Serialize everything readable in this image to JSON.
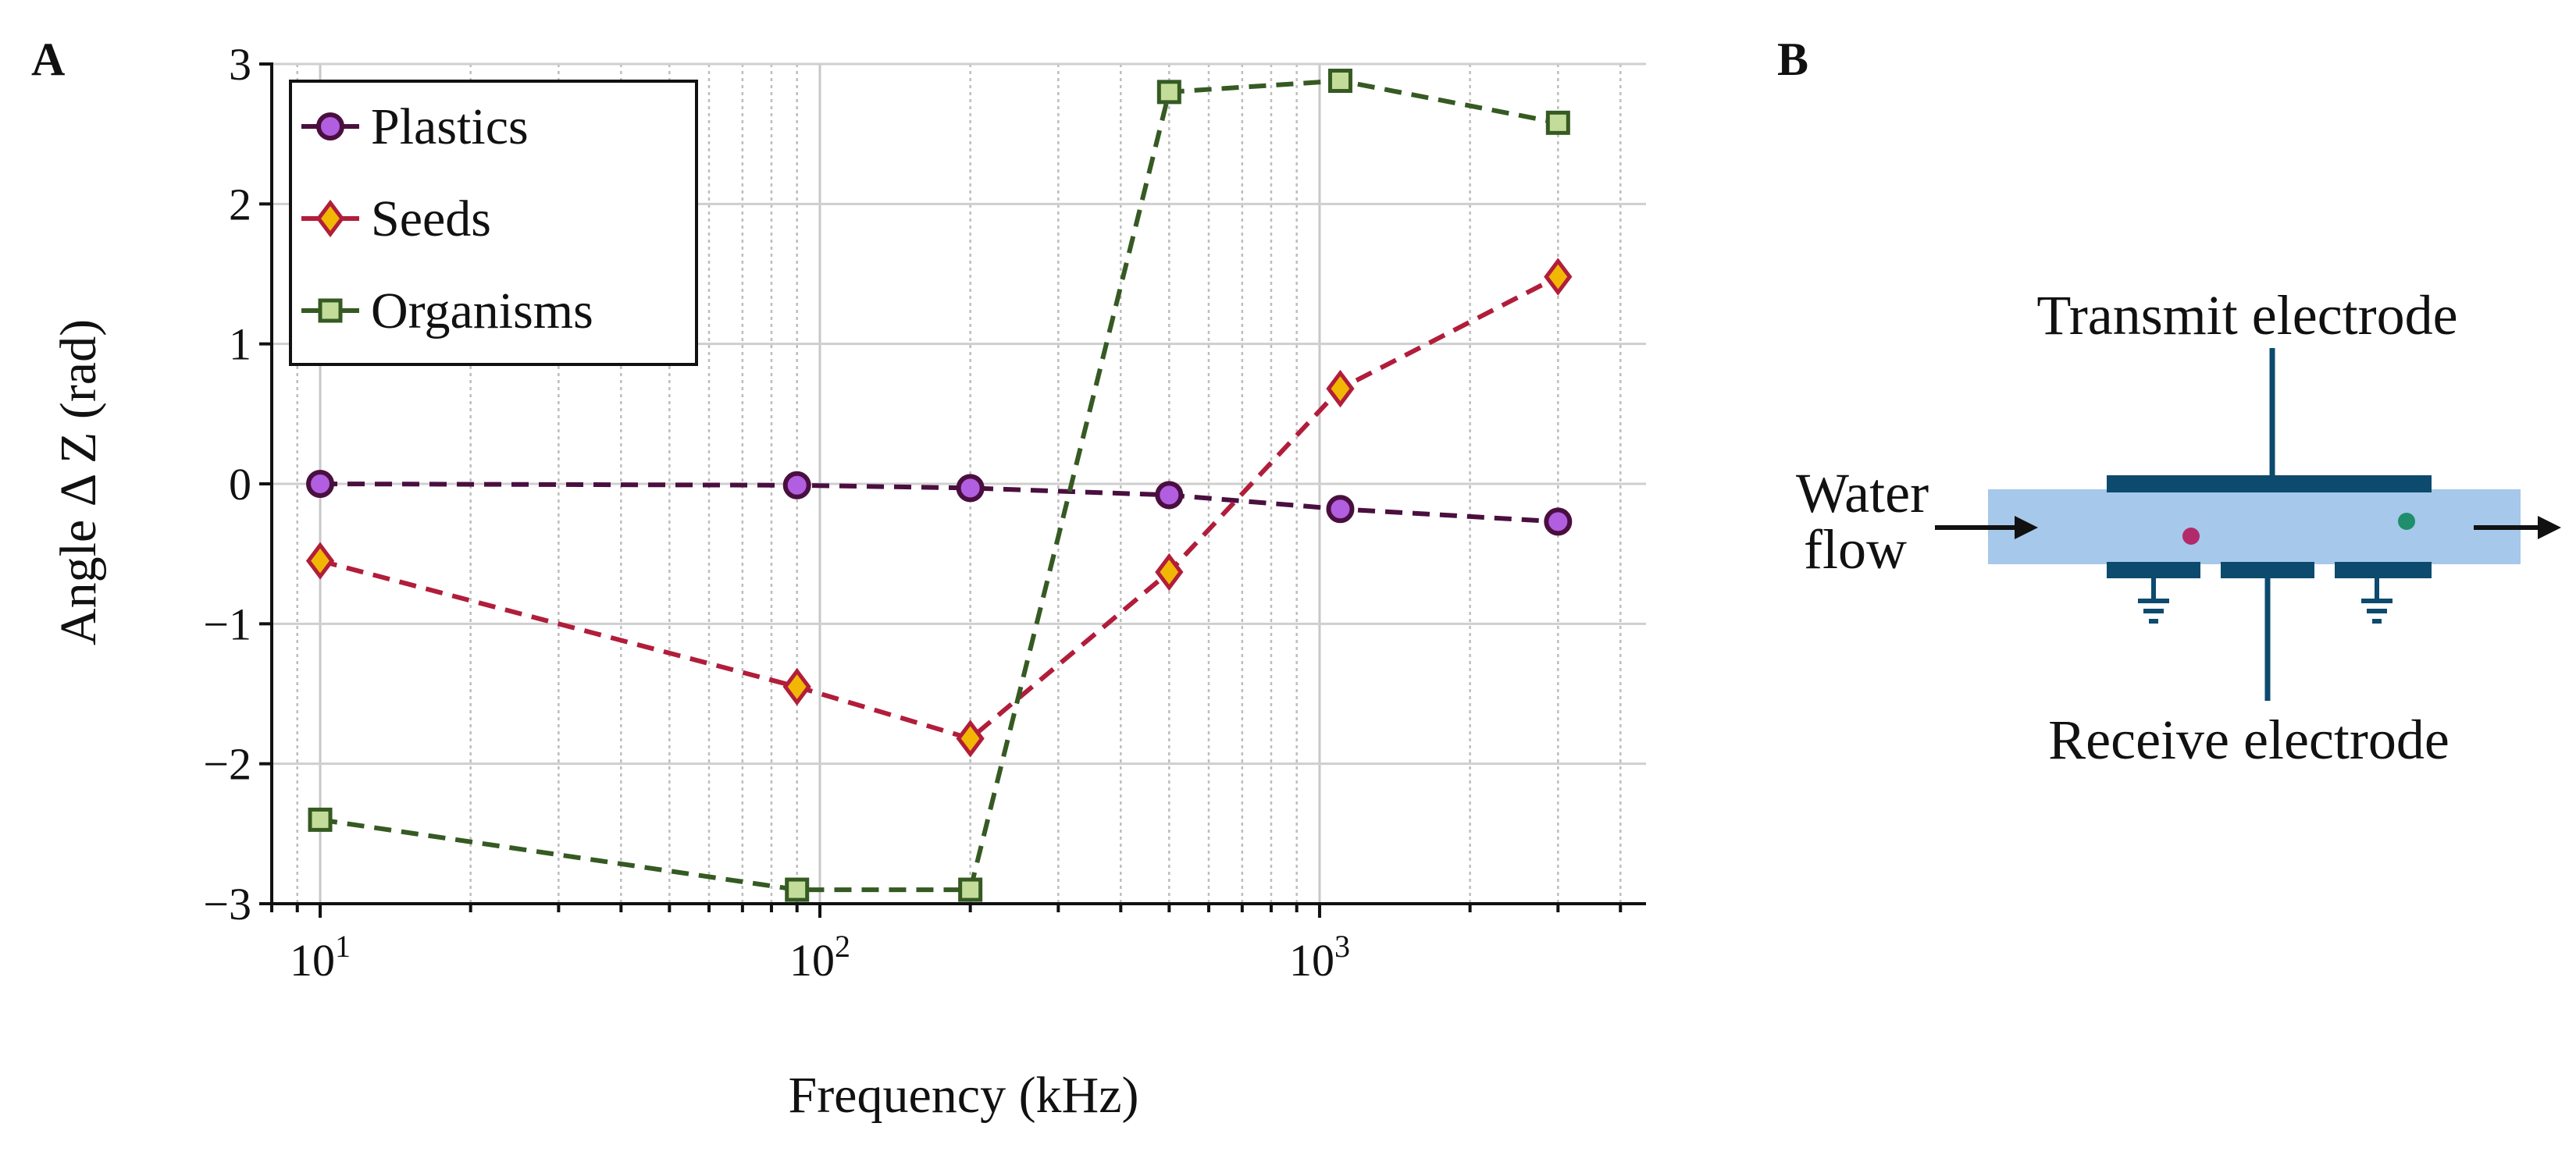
{
  "panel_a": {
    "label": "A",
    "chart_data": {
      "type": "line",
      "xscale": "log",
      "xlabel": "Frequency (kHz)",
      "ylabel": "Angle Δ Z (rad)",
      "xlim": [
        8,
        4500
      ],
      "ylim": [
        -3,
        3
      ],
      "grid": true,
      "legend_position": "top-left",
      "x_ticks": [
        {
          "value": 10,
          "base": "10",
          "exp": "1"
        },
        {
          "value": 100,
          "base": "10",
          "exp": "2"
        },
        {
          "value": 1000,
          "base": "10",
          "exp": "3"
        }
      ],
      "y_ticks": [
        {
          "value": 3,
          "label": "3"
        },
        {
          "value": 2,
          "label": "2"
        },
        {
          "value": 1,
          "label": "1"
        },
        {
          "value": 0,
          "label": "0"
        },
        {
          "value": -1,
          "label": "−1"
        },
        {
          "value": -2,
          "label": "−2"
        },
        {
          "value": -3,
          "label": "−3"
        }
      ],
      "series": [
        {
          "name": "Plastics",
          "marker": "circle",
          "line_color": "#4a0f3f",
          "fill_color": "#b15ee0",
          "edge_color": "#4a0f3f",
          "x": [
            10,
            90,
            200,
            500,
            1100,
            3000
          ],
          "y": [
            0.0,
            -0.01,
            -0.03,
            -0.08,
            -0.18,
            -0.27
          ]
        },
        {
          "name": "Seeds",
          "marker": "diamond",
          "line_color": "#b11d3a",
          "fill_color": "#f2b705",
          "edge_color": "#b11d3a",
          "x": [
            10,
            90,
            200,
            500,
            1100,
            3000
          ],
          "y": [
            -0.55,
            -1.45,
            -1.82,
            -0.63,
            0.68,
            1.48
          ]
        },
        {
          "name": "Organisms",
          "marker": "square",
          "line_color": "#355a22",
          "fill_color": "#c4dc9a",
          "edge_color": "#355a22",
          "x": [
            10,
            90,
            200,
            500,
            1100,
            3000
          ],
          "y": [
            -2.4,
            -2.9,
            -2.9,
            2.8,
            2.88,
            2.58
          ]
        }
      ]
    }
  },
  "panel_b": {
    "label": "B",
    "transmit_label": "Transmit electrode",
    "receive_label": "Receive electrode",
    "flow_label_line1": "Water",
    "flow_label_line2": "flow",
    "colors": {
      "channel": "#a6c8ea",
      "electrode": "#0c4a6e",
      "particle_1": "#b22a6a",
      "particle_2": "#1f8e6b"
    }
  }
}
